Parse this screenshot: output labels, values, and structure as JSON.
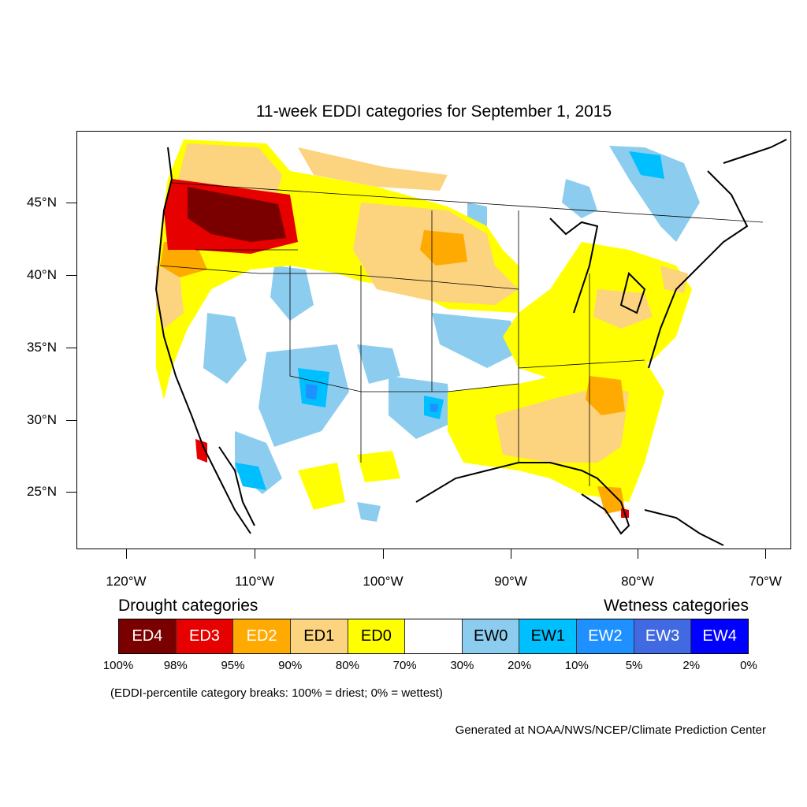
{
  "title": "11-week EDDI categories for September 1, 2015",
  "map": {
    "lat_ticks": [
      "45°N",
      "40°N",
      "35°N",
      "30°N",
      "25°N"
    ],
    "lon_ticks": [
      "120°W",
      "110°W",
      "100°W",
      "90°W",
      "80°W",
      "70°W"
    ]
  },
  "legend": {
    "drought_title": "Drought categories",
    "wetness_title": "Wetness categories",
    "categories": [
      {
        "label": "ED4",
        "color": "#7a0000",
        "text_color": "#ffffff"
      },
      {
        "label": "ED3",
        "color": "#e60000",
        "text_color": "#ffffff"
      },
      {
        "label": "ED2",
        "color": "#ffaa00",
        "text_color": "#ffffff"
      },
      {
        "label": "ED1",
        "color": "#fcd37f",
        "text_color": "#000000"
      },
      {
        "label": "ED0",
        "color": "#ffff00",
        "text_color": "#000000"
      },
      {
        "label": "",
        "color": "#ffffff",
        "text_color": "#000000"
      },
      {
        "label": "EW0",
        "color": "#8ccdef",
        "text_color": "#000000"
      },
      {
        "label": "EW1",
        "color": "#00bfff",
        "text_color": "#000000"
      },
      {
        "label": "EW2",
        "color": "#1e90ff",
        "text_color": "#ffffff"
      },
      {
        "label": "EW3",
        "color": "#4169e1",
        "text_color": "#ffffff"
      },
      {
        "label": "EW4",
        "color": "#0000ff",
        "text_color": "#ffffff"
      }
    ],
    "percentiles": [
      "100%",
      "98%",
      "95%",
      "90%",
      "80%",
      "70%",
      "30%",
      "20%",
      "10%",
      "5%",
      "2%",
      "0%"
    ]
  },
  "note": "(EDDI-percentile category breaks: 100% = driest; 0% = wettest)",
  "credit": "Generated at NOAA/NWS/NCEP/Climate Prediction Center"
}
